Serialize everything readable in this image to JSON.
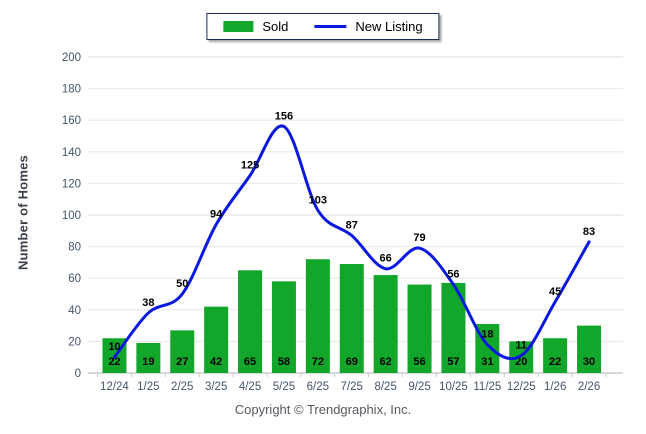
{
  "footer": {
    "copyright": "Copyright © Trendgraphix, Inc."
  },
  "chart_data": {
    "type": "combo",
    "title": "",
    "xlabel": "",
    "ylabel": "Number of Homes",
    "ylim": [
      0,
      200
    ],
    "ytick_step": 20,
    "grid": true,
    "legend_position": "top",
    "categories": [
      "12/24",
      "1/25",
      "2/25",
      "3/25",
      "4/25",
      "5/25",
      "6/25",
      "7/25",
      "8/25",
      "9/25",
      "10/25",
      "11/25",
      "12/25",
      "1/26",
      "2/26"
    ],
    "series": [
      {
        "name": "Sold",
        "type": "bar",
        "color": "#12a62a",
        "values": [
          22,
          19,
          27,
          42,
          65,
          58,
          72,
          69,
          62,
          56,
          57,
          31,
          20,
          22,
          30
        ]
      },
      {
        "name": "New Listing",
        "type": "line",
        "color": "#0a18e0",
        "values": [
          10,
          38,
          50,
          94,
          125,
          156,
          103,
          87,
          66,
          79,
          56,
          18,
          11,
          45,
          83
        ]
      }
    ],
    "colors": {
      "grid_line": "#ececec",
      "axis_line": "#c9ccd1",
      "tick_label": "#44546a",
      "data_label": "#000000"
    }
  }
}
